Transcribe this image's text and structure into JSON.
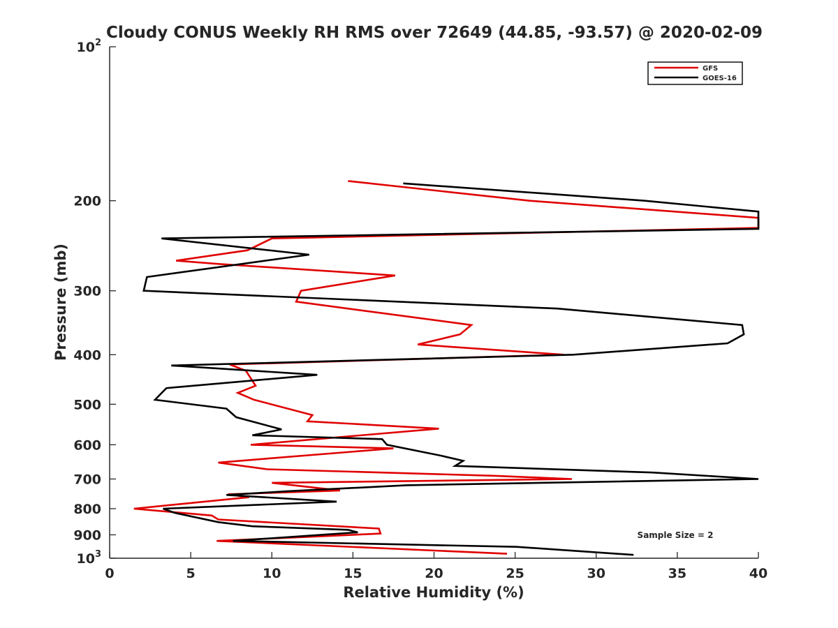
{
  "chart_data": {
    "type": "line",
    "title": "Cloudy CONUS Weekly RH RMS over 72649 (44.85, -93.57) @ 2020-02-09",
    "xlabel": "Relative Humidity (%)",
    "ylabel": "Pressure (mb)",
    "xlim": [
      0,
      40
    ],
    "ylim": [
      100,
      1000
    ],
    "y_scale": "log",
    "y_reversed": true,
    "grid": false,
    "legend_position": "top-right",
    "xticks": [
      0,
      5,
      10,
      15,
      20,
      25,
      30,
      35,
      40
    ],
    "yticks": [
      {
        "value": 100,
        "base": "10",
        "exp": "2"
      },
      {
        "value": 200,
        "label": "200"
      },
      {
        "value": 300,
        "label": "300"
      },
      {
        "value": 400,
        "label": "400"
      },
      {
        "value": 500,
        "label": "500"
      },
      {
        "value": 600,
        "label": "600"
      },
      {
        "value": 700,
        "label": "700"
      },
      {
        "value": 800,
        "label": "800"
      },
      {
        "value": 900,
        "label": "900"
      },
      {
        "value": 1000,
        "base": "10",
        "exp": "3"
      }
    ],
    "annotation": "Sample Size = 2",
    "series": [
      {
        "name": "GFS",
        "color": "#e00000",
        "points": [
          [
            14.7,
            183
          ],
          [
            25.9,
            200
          ],
          [
            40,
            216
          ],
          [
            40,
            226
          ],
          [
            10,
            237
          ],
          [
            8.5,
            250
          ],
          [
            4.1,
            262
          ],
          [
            6.8,
            266
          ],
          [
            17.6,
            280
          ],
          [
            11.8,
            300
          ],
          [
            11.5,
            315
          ],
          [
            22.3,
            350
          ],
          [
            21.6,
            365
          ],
          [
            19,
            382
          ],
          [
            28,
            400
          ],
          [
            7.4,
            418
          ],
          [
            8.4,
            430
          ],
          [
            8.7,
            445
          ],
          [
            9,
            460
          ],
          [
            7.9,
            475
          ],
          [
            8.9,
            490
          ],
          [
            12.5,
            525
          ],
          [
            12.2,
            540
          ],
          [
            20.3,
            558
          ],
          [
            8.7,
            600
          ],
          [
            17.5,
            610
          ],
          [
            6.7,
            650
          ],
          [
            9.7,
            670
          ],
          [
            23.8,
            690
          ],
          [
            28.5,
            700
          ],
          [
            10,
            712
          ],
          [
            14.2,
            737
          ],
          [
            7.3,
            750
          ],
          [
            8.6,
            760
          ],
          [
            1.5,
            800
          ],
          [
            6.3,
            825
          ],
          [
            6.7,
            840
          ],
          [
            16.6,
            875
          ],
          [
            16.7,
            895
          ],
          [
            6.6,
            925
          ],
          [
            24.5,
            980
          ]
        ]
      },
      {
        "name": "GOES-16",
        "color": "#000000",
        "points": [
          [
            18.1,
            185
          ],
          [
            33,
            200
          ],
          [
            40,
            210
          ],
          [
            40,
            227
          ],
          [
            3.2,
            237
          ],
          [
            12.3,
            255
          ],
          [
            2.3,
            282
          ],
          [
            2.1,
            300
          ],
          [
            27.6,
            325
          ],
          [
            39,
            350
          ],
          [
            39.1,
            365
          ],
          [
            38.1,
            380
          ],
          [
            28.6,
            400
          ],
          [
            3.8,
            420
          ],
          [
            12.8,
            438
          ],
          [
            3.5,
            465
          ],
          [
            2.8,
            490
          ],
          [
            7.2,
            510
          ],
          [
            7.8,
            530
          ],
          [
            10.6,
            560
          ],
          [
            8.8,
            575
          ],
          [
            16.8,
            585
          ],
          [
            17.1,
            600
          ],
          [
            20.4,
            630
          ],
          [
            21.8,
            645
          ],
          [
            21.3,
            660
          ],
          [
            33.5,
            680
          ],
          [
            40,
            700
          ],
          [
            18.3,
            720
          ],
          [
            10.9,
            740
          ],
          [
            7.2,
            752
          ],
          [
            14,
            775
          ],
          [
            3.3,
            800
          ],
          [
            4,
            815
          ],
          [
            6.7,
            850
          ],
          [
            8.8,
            866
          ],
          [
            14.7,
            880
          ],
          [
            15.3,
            890
          ],
          [
            7.6,
            925
          ],
          [
            25.1,
            950
          ],
          [
            32.3,
            985
          ]
        ]
      }
    ]
  }
}
